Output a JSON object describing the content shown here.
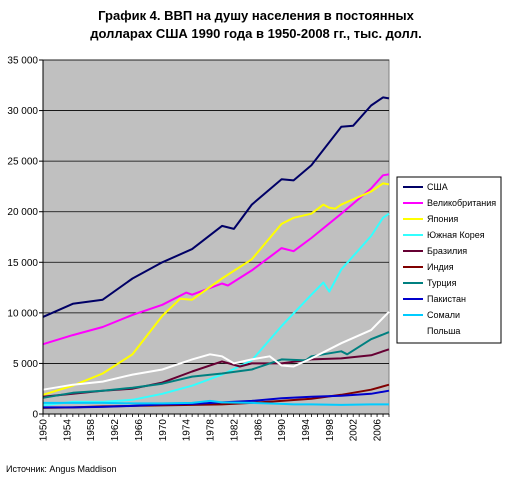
{
  "chart_data": {
    "type": "line",
    "title_line1": "График 4. ВВП на душу населения в постоянных",
    "title_line2": "долларах США 1990 года в 1950-2008 гг., тыс. долл.",
    "source": "Источник: Angus Maddison",
    "ylim": [
      0,
      35000
    ],
    "yticks": [
      "0",
      "5 000",
      "10 000",
      "15 000",
      "20 000",
      "25 000",
      "30 000",
      "35 000"
    ],
    "xlim": [
      1950,
      2008
    ],
    "xticks": [
      1950,
      1954,
      1958,
      1962,
      1966,
      1970,
      1974,
      1978,
      1982,
      1986,
      1990,
      1994,
      1998,
      2002,
      2006
    ],
    "grid": true,
    "plot_background": "#c0c0c0",
    "legend_position": "right",
    "series": [
      {
        "name": "США",
        "color": "#000066",
        "points": [
          [
            1950,
            9600
          ],
          [
            1955,
            10900
          ],
          [
            1960,
            11300
          ],
          [
            1965,
            13400
          ],
          [
            1970,
            15000
          ],
          [
            1975,
            16300
          ],
          [
            1980,
            18600
          ],
          [
            1982,
            18300
          ],
          [
            1985,
            20700
          ],
          [
            1990,
            23200
          ],
          [
            1992,
            23100
          ],
          [
            1995,
            24600
          ],
          [
            2000,
            28400
          ],
          [
            2002,
            28500
          ],
          [
            2005,
            30500
          ],
          [
            2007,
            31300
          ],
          [
            2008,
            31200
          ]
        ]
      },
      {
        "name": "Великобритания",
        "color": "#ff00ff",
        "points": [
          [
            1950,
            6900
          ],
          [
            1955,
            7800
          ],
          [
            1960,
            8600
          ],
          [
            1965,
            9800
          ],
          [
            1970,
            10800
          ],
          [
            1974,
            12000
          ],
          [
            1975,
            11800
          ],
          [
            1980,
            12900
          ],
          [
            1981,
            12700
          ],
          [
            1985,
            14200
          ],
          [
            1990,
            16400
          ],
          [
            1992,
            16100
          ],
          [
            1995,
            17400
          ],
          [
            2000,
            19800
          ],
          [
            2005,
            22300
          ],
          [
            2007,
            23600
          ],
          [
            2008,
            23700
          ]
        ]
      },
      {
        "name": "Япония",
        "color": "#ffff00",
        "points": [
          [
            1950,
            1900
          ],
          [
            1955,
            2800
          ],
          [
            1960,
            4000
          ],
          [
            1965,
            5900
          ],
          [
            1970,
            9700
          ],
          [
            1973,
            11400
          ],
          [
            1975,
            11300
          ],
          [
            1980,
            13400
          ],
          [
            1985,
            15300
          ],
          [
            1990,
            18800
          ],
          [
            1992,
            19400
          ],
          [
            1995,
            19800
          ],
          [
            1997,
            20700
          ],
          [
            1998,
            20400
          ],
          [
            1999,
            20300
          ],
          [
            2000,
            20700
          ],
          [
            2005,
            22000
          ],
          [
            2007,
            22800
          ],
          [
            2008,
            22700
          ]
        ]
      },
      {
        "name": "Южная Корея",
        "color": "#33ffff",
        "points": [
          [
            1950,
            850
          ],
          [
            1955,
            1200
          ],
          [
            1960,
            1200
          ],
          [
            1965,
            1400
          ],
          [
            1970,
            2000
          ],
          [
            1975,
            2800
          ],
          [
            1980,
            3900
          ],
          [
            1985,
            5300
          ],
          [
            1990,
            8700
          ],
          [
            1995,
            11800
          ],
          [
            1997,
            13000
          ],
          [
            1998,
            12100
          ],
          [
            2000,
            14300
          ],
          [
            2005,
            17600
          ],
          [
            2007,
            19400
          ],
          [
            2008,
            19800
          ]
        ]
      },
      {
        "name": "Бразилия",
        "color": "#660033",
        "points": [
          [
            1950,
            1700
          ],
          [
            1955,
            2000
          ],
          [
            1960,
            2300
          ],
          [
            1965,
            2500
          ],
          [
            1970,
            3100
          ],
          [
            1975,
            4200
          ],
          [
            1980,
            5200
          ],
          [
            1983,
            4700
          ],
          [
            1985,
            5000
          ],
          [
            1990,
            5000
          ],
          [
            1995,
            5400
          ],
          [
            2000,
            5500
          ],
          [
            2005,
            5800
          ],
          [
            2008,
            6400
          ]
        ]
      },
      {
        "name": "Индия",
        "color": "#800000",
        "points": [
          [
            1950,
            600
          ],
          [
            1955,
            650
          ],
          [
            1960,
            750
          ],
          [
            1965,
            800
          ],
          [
            1970,
            850
          ],
          [
            1975,
            900
          ],
          [
            1980,
            950
          ],
          [
            1985,
            1100
          ],
          [
            1990,
            1300
          ],
          [
            1995,
            1500
          ],
          [
            2000,
            1900
          ],
          [
            2005,
            2400
          ],
          [
            2008,
            2900
          ]
        ]
      },
      {
        "name": "Турция",
        "color": "#008080",
        "points": [
          [
            1950,
            1600
          ],
          [
            1955,
            2100
          ],
          [
            1960,
            2300
          ],
          [
            1965,
            2600
          ],
          [
            1970,
            3000
          ],
          [
            1975,
            3700
          ],
          [
            1980,
            4000
          ],
          [
            1985,
            4400
          ],
          [
            1990,
            5400
          ],
          [
            1994,
            5300
          ],
          [
            1995,
            5700
          ],
          [
            2000,
            6200
          ],
          [
            2001,
            5900
          ],
          [
            2005,
            7400
          ],
          [
            2008,
            8100
          ]
        ]
      },
      {
        "name": "Пакистан",
        "color": "#0000cc",
        "points": [
          [
            1950,
            650
          ],
          [
            1955,
            650
          ],
          [
            1960,
            700
          ],
          [
            1965,
            800
          ],
          [
            1970,
            950
          ],
          [
            1975,
            1000
          ],
          [
            1980,
            1150
          ],
          [
            1985,
            1300
          ],
          [
            1990,
            1550
          ],
          [
            1995,
            1700
          ],
          [
            2000,
            1800
          ],
          [
            2005,
            2000
          ],
          [
            2008,
            2300
          ]
        ]
      },
      {
        "name": "Сомали",
        "color": "#00ccff",
        "points": [
          [
            1950,
            1100
          ],
          [
            1955,
            1100
          ],
          [
            1960,
            1100
          ],
          [
            1965,
            1050
          ],
          [
            1970,
            1050
          ],
          [
            1975,
            1100
          ],
          [
            1978,
            1300
          ],
          [
            1980,
            1150
          ],
          [
            1985,
            1100
          ],
          [
            1990,
            1000
          ],
          [
            1992,
            950
          ],
          [
            1995,
            950
          ],
          [
            2000,
            900
          ],
          [
            2005,
            950
          ],
          [
            2008,
            950
          ]
        ]
      },
      {
        "name": "Польша",
        "color": "#ffffff",
        "points": [
          [
            1950,
            2400
          ],
          [
            1955,
            2900
          ],
          [
            1960,
            3200
          ],
          [
            1965,
            3900
          ],
          [
            1970,
            4400
          ],
          [
            1975,
            5400
          ],
          [
            1978,
            5900
          ],
          [
            1980,
            5700
          ],
          [
            1982,
            5000
          ],
          [
            1985,
            5400
          ],
          [
            1988,
            5700
          ],
          [
            1990,
            4800
          ],
          [
            1992,
            4700
          ],
          [
            1995,
            5500
          ],
          [
            2000,
            7000
          ],
          [
            2005,
            8300
          ],
          [
            2008,
            10100
          ]
        ]
      }
    ]
  }
}
